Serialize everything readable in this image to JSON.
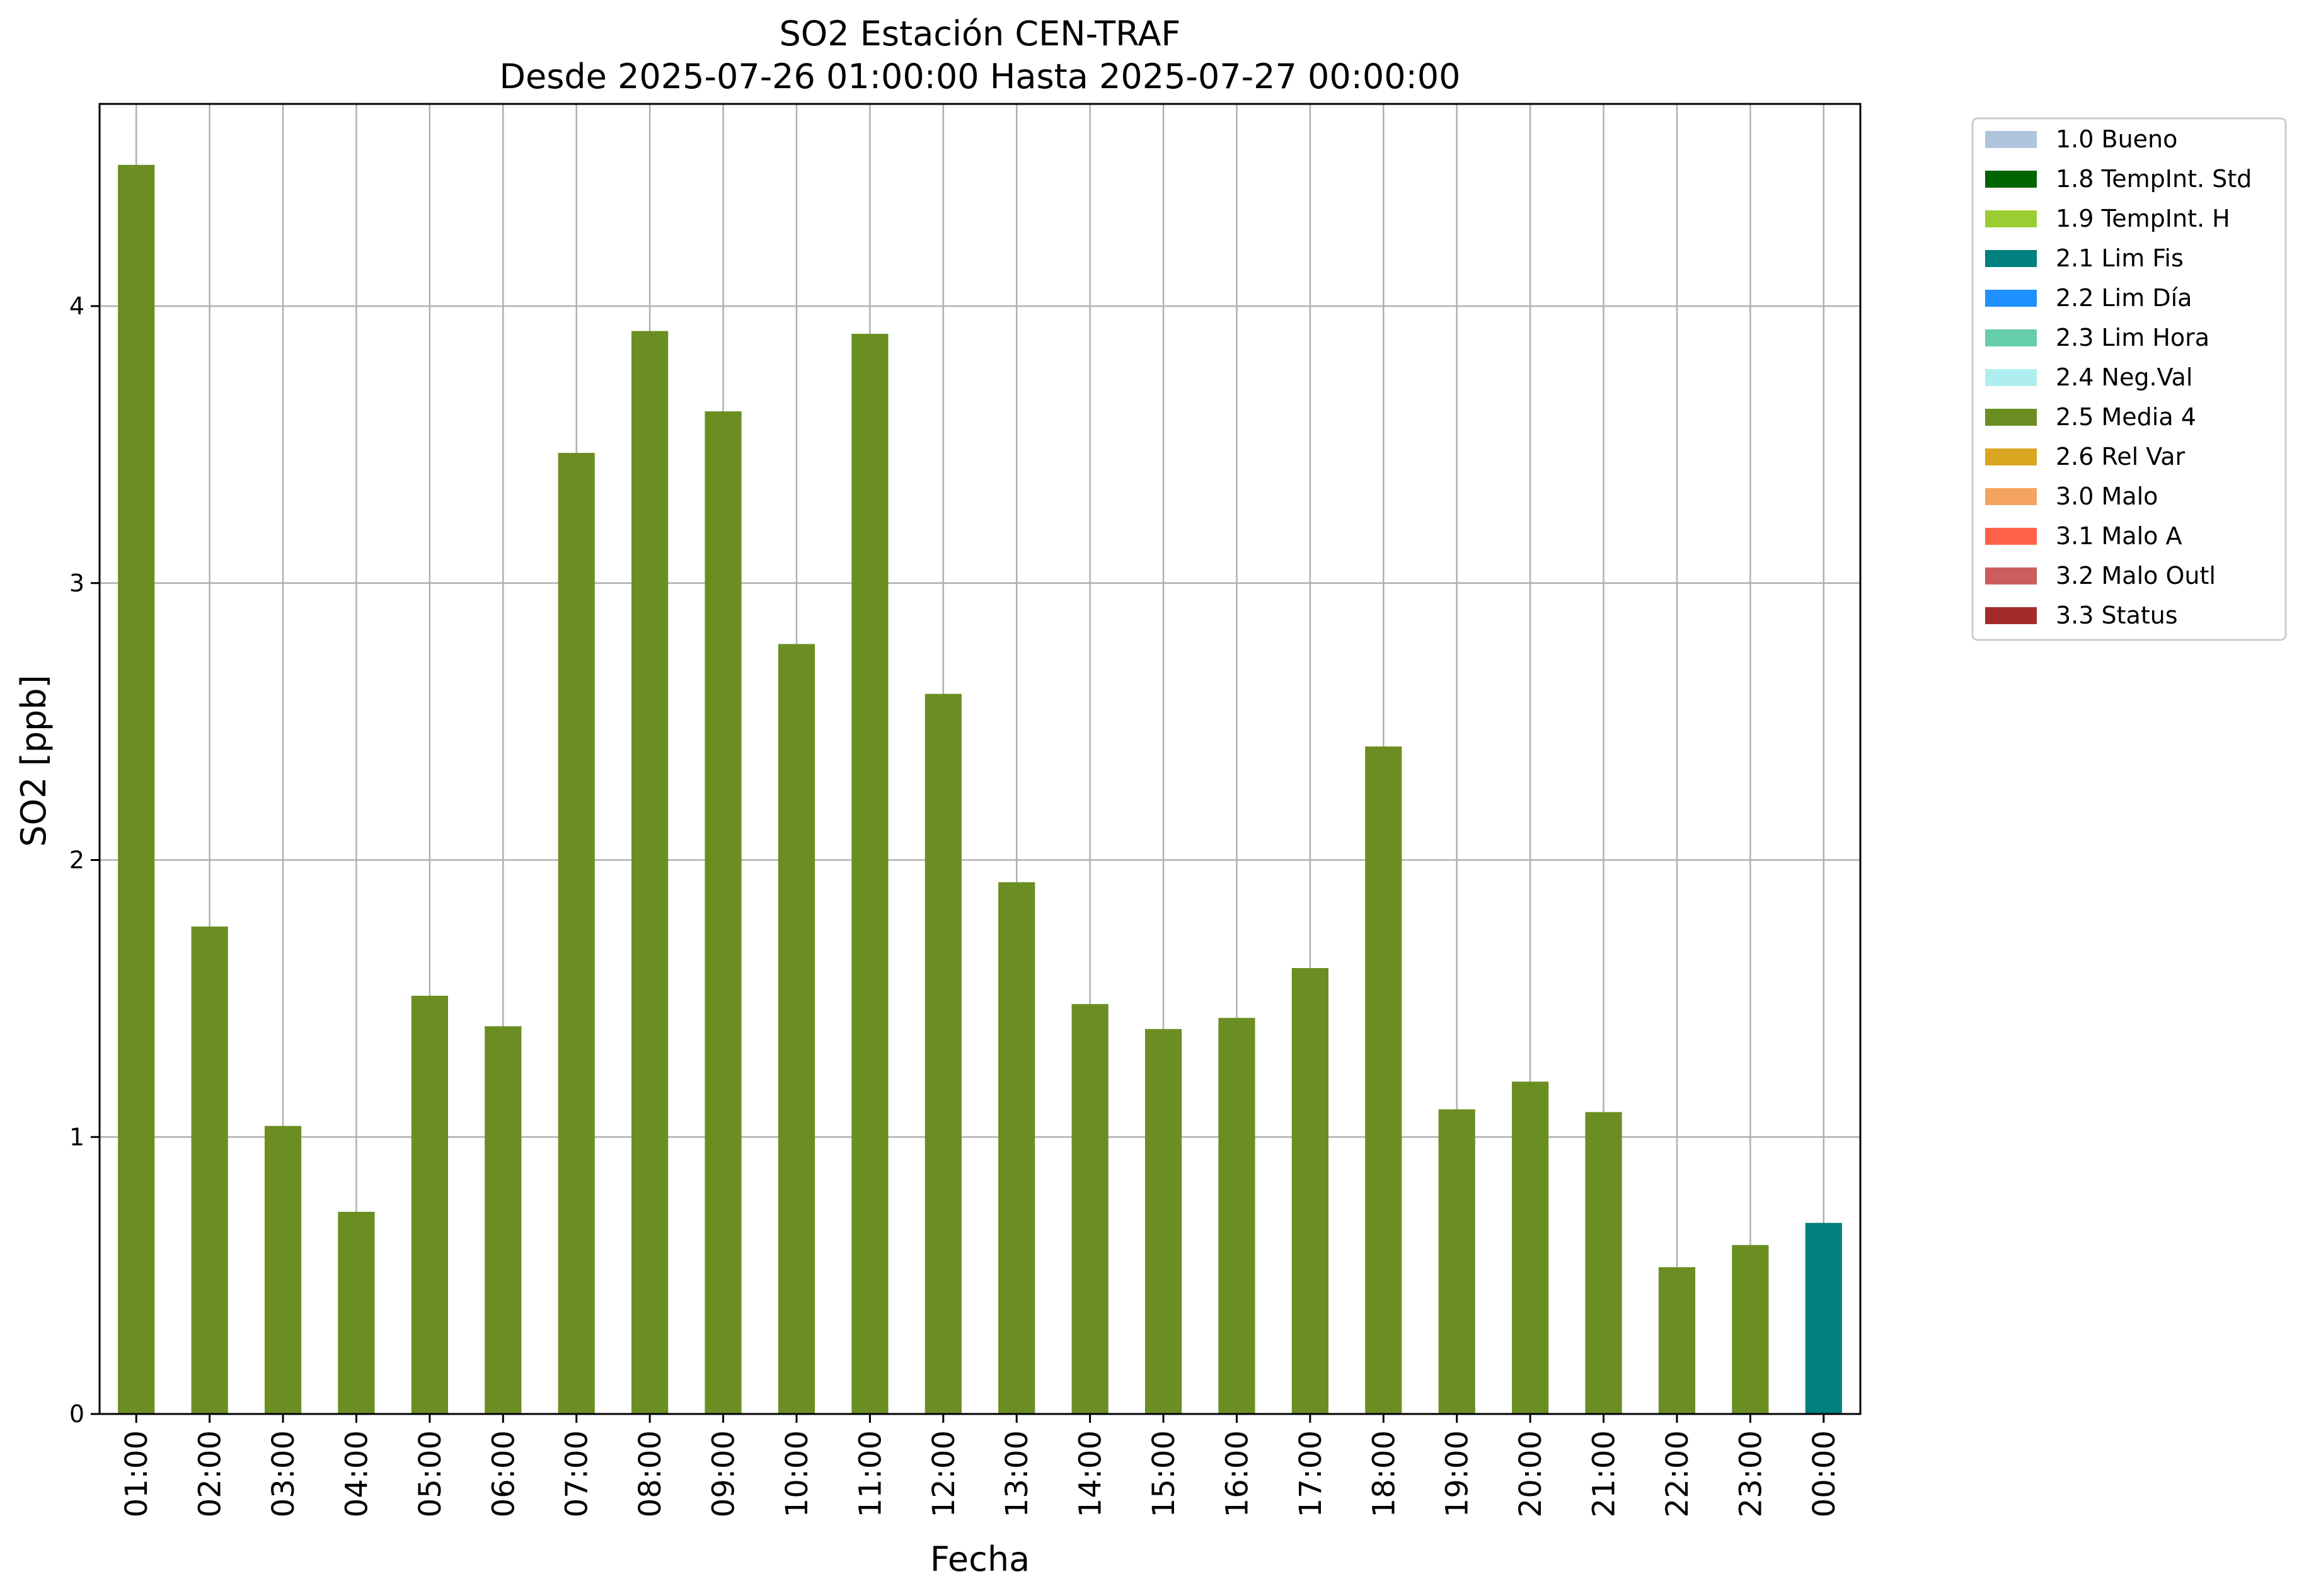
{
  "chart_data": {
    "type": "bar",
    "title": "SO2 Estación CEN-TRAF",
    "subtitle": "Desde 2025-07-26 01:00:00 Hasta 2025-07-27 00:00:00",
    "xlabel": "Fecha",
    "ylabel": "SO2 [ppb]",
    "ylim": [
      0,
      4.73
    ],
    "yticks": [
      "0",
      "1",
      "2",
      "3",
      "4"
    ],
    "grid": true,
    "legend_position": "outside-top-right",
    "categories": [
      "01:00",
      "02:00",
      "03:00",
      "04:00",
      "05:00",
      "06:00",
      "07:00",
      "08:00",
      "09:00",
      "10:00",
      "11:00",
      "12:00",
      "13:00",
      "14:00",
      "15:00",
      "16:00",
      "17:00",
      "18:00",
      "19:00",
      "20:00",
      "21:00",
      "22:00",
      "23:00",
      "00:00"
    ],
    "values": [
      4.51,
      1.76,
      1.04,
      0.73,
      1.51,
      1.4,
      3.47,
      3.91,
      3.62,
      2.78,
      3.9,
      2.6,
      1.92,
      1.48,
      1.39,
      1.43,
      1.61,
      2.41,
      1.1,
      1.2,
      1.09,
      0.53,
      0.61,
      0.69
    ],
    "flags": [
      "2.5 Media 4",
      "2.5 Media 4",
      "2.5 Media 4",
      "2.5 Media 4",
      "2.5 Media 4",
      "2.5 Media 4",
      "2.5 Media 4",
      "2.5 Media 4",
      "2.5 Media 4",
      "2.5 Media 4",
      "2.5 Media 4",
      "2.5 Media 4",
      "2.5 Media 4",
      "2.5 Media 4",
      "2.5 Media 4",
      "2.5 Media 4",
      "2.5 Media 4",
      "2.5 Media 4",
      "2.5 Media 4",
      "2.5 Media 4",
      "2.5 Media 4",
      "2.5 Media 4",
      "2.5 Media 4",
      "2.1 Lim Fis"
    ],
    "legend": [
      {
        "label": "1.0 Bueno",
        "color": "#b0c4de"
      },
      {
        "label": "1.8 TempInt. Std",
        "color": "#006400"
      },
      {
        "label": "1.9 TempInt. H",
        "color": "#9acd32"
      },
      {
        "label": "2.1 Lim Fis",
        "color": "#008080"
      },
      {
        "label": "2.2 Lim Día",
        "color": "#1e90ff"
      },
      {
        "label": "2.3 Lim Hora",
        "color": "#66cdaa"
      },
      {
        "label": "2.4 Neg.Val",
        "color": "#afeeee"
      },
      {
        "label": "2.5 Media 4",
        "color": "#6b8e23"
      },
      {
        "label": "2.6 Rel Var",
        "color": "#daa520"
      },
      {
        "label": "3.0 Malo",
        "color": "#f4a460"
      },
      {
        "label": "3.1 Malo A",
        "color": "#ff6347"
      },
      {
        "label": "3.2 Malo Outl",
        "color": "#cd5c5c"
      },
      {
        "label": "3.3 Status",
        "color": "#a52a2a"
      }
    ]
  }
}
